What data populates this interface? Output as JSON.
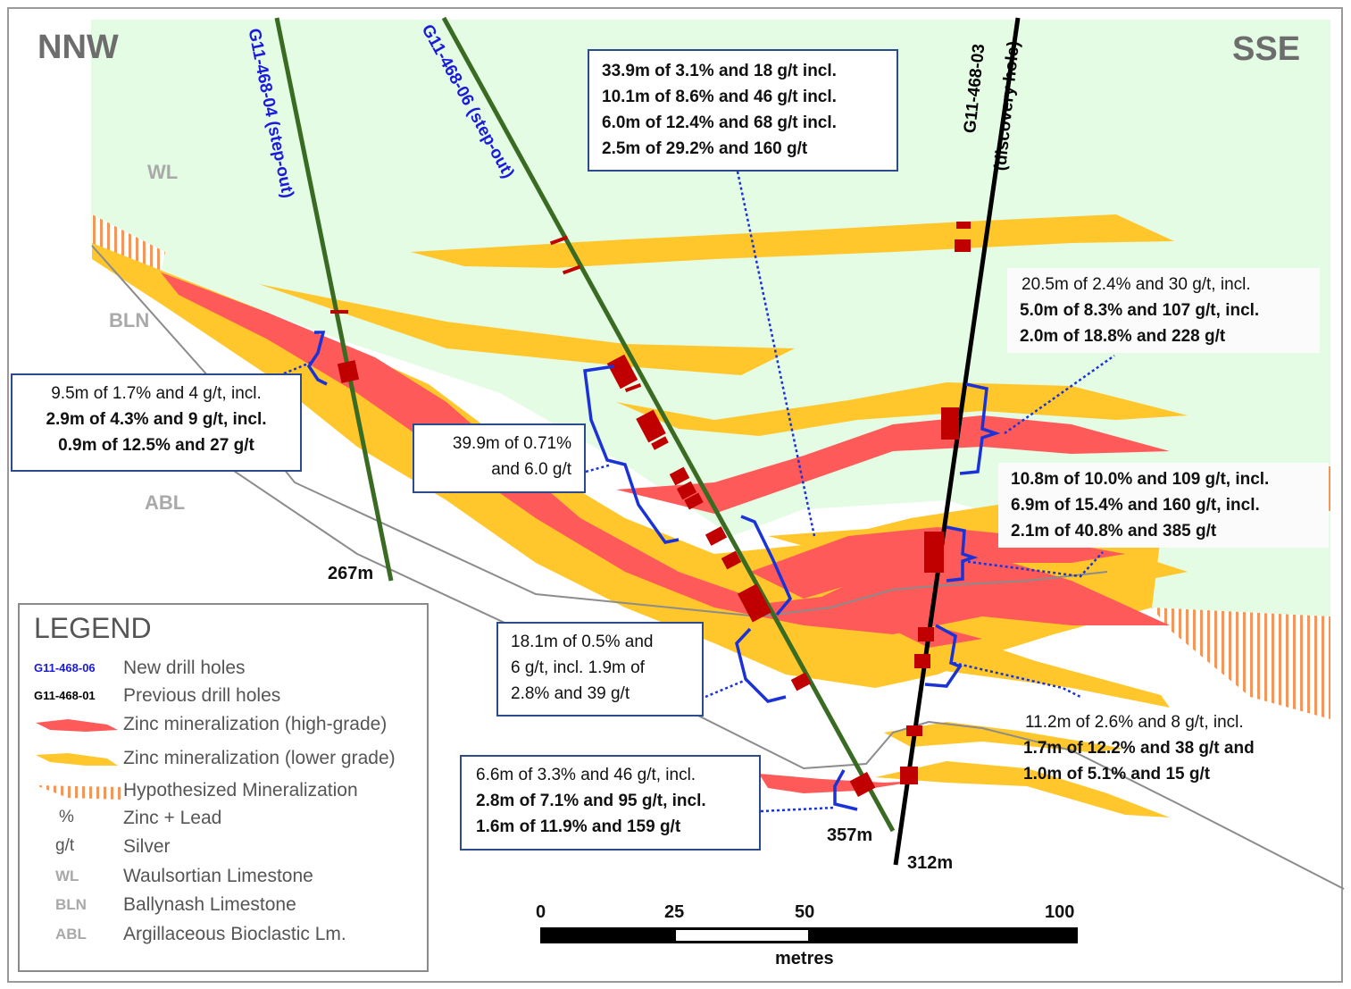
{
  "directions": {
    "left": "NNW",
    "right": "SSE"
  },
  "units": {
    "wl": "WL",
    "bln": "BLN",
    "abl": "ABL"
  },
  "holes": [
    {
      "id": "G11-468-04 (step-out)",
      "color": "#1a1adc",
      "line": "#3a6b22",
      "depth": "267m"
    },
    {
      "id": "G11-468-06 (step-out)",
      "color": "#1a1adc",
      "line": "#3a6b22",
      "depth": "357m"
    },
    {
      "id": "G11-468-03",
      "sub": "(discovery hole)",
      "color": "#000000",
      "line": "#000000",
      "depth": "312m"
    }
  ],
  "annotations": {
    "top_box": [
      "33.9m of 3.1% and 18 g/t incl.",
      "10.1m of 8.6% and 46 g/t incl.",
      "6.0m of 12.4% and 68 g/t incl.",
      "2.5m of 29.2% and 160 g/t"
    ],
    "right_upper": [
      "20.5m of 2.4% and 30 g/t, incl.",
      "5.0m of 8.3% and 107 g/t, incl.",
      "2.0m of 18.8% and 228 g/t"
    ],
    "left_box": [
      "9.5m of 1.7% and 4 g/t, incl.",
      "2.9m of 4.3% and 9 g/t, incl.",
      "0.9m of 12.5% and 27 g/t"
    ],
    "mid_box": [
      "39.9m of 0.71%",
      "and 6.0 g/t"
    ],
    "right_mid": [
      "10.8m of 10.0% and 109 g/t, incl.",
      "6.9m of 15.4% and 160 g/t, incl.",
      "2.1m of 40.8% and 385 g/t"
    ],
    "lower_mid_box": [
      "18.1m of 0.5% and",
      "6 g/t, incl. 1.9m of",
      "2.8% and 39 g/t"
    ],
    "right_lower": [
      "11.2m of 2.6% and 8 g/t, incl.",
      "1.7m of 12.2% and 38 g/t and",
      "1.0m of 5.1% and 15 g/t"
    ],
    "bottom_box": [
      "6.6m of 3.3% and 46 g/t, incl.",
      "2.8m of 7.1% and 95 g/t, incl.",
      "1.6m of 11.9% and 159 g/t"
    ]
  },
  "legend": {
    "title": "LEGEND",
    "new_code": "G11-468-06",
    "new_label": "New drill holes",
    "prev_code": "G11-468-01",
    "prev_label": "Previous drill holes",
    "high_label": "Zinc mineralization (high-grade)",
    "low_label": "Zinc mineralization  (lower grade)",
    "hyp_label": "Hypothesized Mineralization",
    "pct_sym": "%",
    "pct_label": "Zinc + Lead",
    "gt_sym": "g/t",
    "gt_label": "Silver",
    "wl_abbr": "WL",
    "wl_label": "Waulsortian Limestone",
    "bln_abbr": "BLN",
    "bln_label": "Ballynash Limestone",
    "abl_abbr": "ABL",
    "abl_label": "Argillaceous Bioclastic Lm."
  },
  "scale_bar": {
    "ticks": [
      "0",
      "25",
      "50",
      "100"
    ],
    "unit": "metres"
  },
  "colors": {
    "wl_fill": "#e4fbe4",
    "high_grade": "#ff5a5a",
    "lower_grade": "#ffc72c",
    "hypothesized": "#f4955a",
    "intercept": "#c00000",
    "bracket": "#1b33d6",
    "green_hole": "#3a6b22"
  }
}
